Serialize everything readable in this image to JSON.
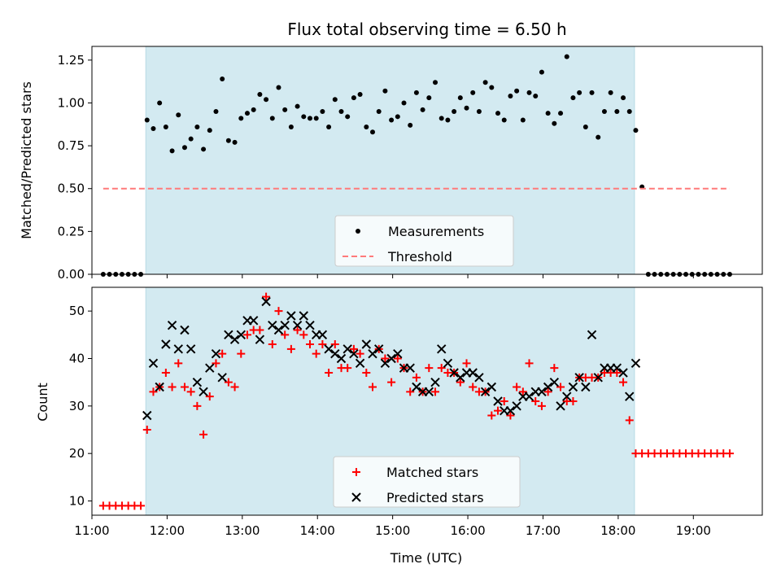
{
  "chart_data": [
    {
      "type": "scatter",
      "title": "Flux total observing time = 6.50 h",
      "xlabel": "",
      "ylabel": "Matched/Predicted stars",
      "xlim": [
        "11:00",
        "19:55"
      ],
      "ylim": [
        0,
        1.33
      ],
      "xticks": [
        "11:00",
        "12:00",
        "13:00",
        "14:00",
        "15:00",
        "16:00",
        "17:00",
        "18:00",
        "19:00"
      ],
      "yticks": [
        "0.00",
        "0.25",
        "0.50",
        "0.75",
        "1.00",
        "1.25"
      ],
      "shaded_interval": [
        "11:43",
        "18:13"
      ],
      "shade_color": "#d3eaf1",
      "legend_position": "bottom-center",
      "series": [
        {
          "name": "Measurements",
          "marker": "dot",
          "color": "#000000",
          "x": [
            "11:09",
            "11:14",
            "11:19",
            "11:24",
            "11:29",
            "11:34",
            "11:39",
            "11:44",
            "11:49",
            "11:54",
            "11:59",
            "12:04",
            "12:09",
            "12:14",
            "12:19",
            "12:24",
            "12:29",
            "12:34",
            "12:39",
            "12:44",
            "12:49",
            "12:54",
            "12:59",
            "13:04",
            "13:09",
            "13:14",
            "13:19",
            "13:24",
            "13:29",
            "13:34",
            "13:39",
            "13:44",
            "13:49",
            "13:54",
            "13:59",
            "14:04",
            "14:09",
            "14:14",
            "14:19",
            "14:24",
            "14:29",
            "14:34",
            "14:39",
            "14:44",
            "14:49",
            "14:54",
            "14:59",
            "15:04",
            "15:09",
            "15:14",
            "15:19",
            "15:24",
            "15:29",
            "15:34",
            "15:39",
            "15:44",
            "15:49",
            "15:54",
            "15:59",
            "16:04",
            "16:09",
            "16:14",
            "16:19",
            "16:24",
            "16:29",
            "16:34",
            "16:39",
            "16:44",
            "16:49",
            "16:54",
            "16:59",
            "17:04",
            "17:09",
            "17:14",
            "17:19",
            "17:24",
            "17:29",
            "17:34",
            "17:39",
            "17:44",
            "17:49",
            "17:54",
            "17:59",
            "18:04",
            "18:09",
            "18:14",
            "18:19",
            "18:24",
            "18:29",
            "18:34",
            "18:39",
            "18:44",
            "18:49",
            "18:54",
            "18:59",
            "19:04",
            "19:09",
            "19:14",
            "19:19",
            "19:24",
            "19:29"
          ],
          "y": [
            0,
            0,
            0,
            0,
            0,
            0,
            0,
            0.9,
            0.85,
            1.0,
            0.86,
            0.72,
            0.93,
            0.74,
            0.79,
            0.86,
            0.73,
            0.84,
            0.95,
            1.14,
            0.78,
            0.77,
            0.91,
            0.94,
            0.96,
            1.05,
            1.02,
            0.91,
            1.09,
            0.96,
            0.86,
            0.98,
            0.92,
            0.91,
            0.91,
            0.95,
            0.86,
            1.02,
            0.95,
            0.92,
            1.03,
            1.05,
            0.86,
            0.83,
            0.95,
            1.07,
            0.9,
            0.92,
            1.0,
            0.87,
            1.06,
            0.96,
            1.03,
            1.12,
            0.91,
            0.9,
            0.95,
            1.03,
            0.97,
            1.06,
            0.95,
            1.12,
            1.09,
            0.94,
            0.9,
            1.04,
            1.07,
            0.9,
            1.06,
            1.04,
            1.18,
            0.94,
            0.88,
            0.94,
            1.27,
            1.03,
            1.06,
            0.86,
            1.06,
            0.8,
            0.95,
            1.06,
            0.95,
            1.03,
            0.95,
            0.84,
            0.51,
            0,
            0,
            0,
            0,
            0,
            0,
            0,
            0,
            0,
            0,
            0,
            0,
            0,
            0
          ]
        },
        {
          "name": "Threshold",
          "marker": "dashed-line",
          "color": "#ff7a7a",
          "x": [
            "11:09",
            "19:29"
          ],
          "y": [
            0.5,
            0.5
          ]
        }
      ]
    },
    {
      "type": "scatter",
      "title": "",
      "xlabel": "Time (UTC)",
      "ylabel": "Count",
      "xlim": [
        "11:00",
        "19:55"
      ],
      "ylim": [
        7,
        55
      ],
      "xticks": [
        "11:00",
        "12:00",
        "13:00",
        "14:00",
        "15:00",
        "16:00",
        "17:00",
        "18:00",
        "19:00"
      ],
      "yticks": [
        "10",
        "20",
        "30",
        "40",
        "50"
      ],
      "shaded_interval": [
        "11:43",
        "18:13"
      ],
      "shade_color": "#d3eaf1",
      "legend_position": "bottom-center",
      "series": [
        {
          "name": "Matched stars",
          "marker": "plus",
          "color": "#ff0000",
          "x": [
            "11:09",
            "11:14",
            "11:19",
            "11:24",
            "11:29",
            "11:34",
            "11:39",
            "11:44",
            "11:49",
            "11:54",
            "11:59",
            "12:04",
            "12:09",
            "12:14",
            "12:19",
            "12:24",
            "12:29",
            "12:34",
            "12:39",
            "12:44",
            "12:49",
            "12:54",
            "12:59",
            "13:04",
            "13:09",
            "13:14",
            "13:19",
            "13:24",
            "13:29",
            "13:34",
            "13:39",
            "13:44",
            "13:49",
            "13:54",
            "13:59",
            "14:04",
            "14:09",
            "14:14",
            "14:19",
            "14:24",
            "14:29",
            "14:34",
            "14:39",
            "14:44",
            "14:49",
            "14:54",
            "14:59",
            "15:04",
            "15:09",
            "15:14",
            "15:19",
            "15:24",
            "15:29",
            "15:34",
            "15:39",
            "15:44",
            "15:49",
            "15:54",
            "15:59",
            "16:04",
            "16:09",
            "16:14",
            "16:19",
            "16:24",
            "16:29",
            "16:34",
            "16:39",
            "16:44",
            "16:49",
            "16:54",
            "16:59",
            "17:04",
            "17:09",
            "17:14",
            "17:19",
            "17:24",
            "17:29",
            "17:34",
            "17:39",
            "17:44",
            "17:49",
            "17:54",
            "17:59",
            "18:04",
            "18:09",
            "18:14",
            "18:19",
            "18:24",
            "18:29",
            "18:34",
            "18:39",
            "18:44",
            "18:49",
            "18:54",
            "18:59",
            "19:04",
            "19:09",
            "19:14",
            "19:19",
            "19:24",
            "19:29"
          ],
          "y": [
            9,
            9,
            9,
            9,
            9,
            9,
            9,
            25,
            33,
            34,
            37,
            34,
            39,
            34,
            33,
            30,
            24,
            32,
            39,
            41,
            35,
            34,
            41,
            45,
            46,
            46,
            53,
            43,
            50,
            45,
            42,
            46,
            45,
            43,
            41,
            43,
            37,
            43,
            38,
            38,
            42,
            41,
            37,
            34,
            42,
            40,
            35,
            40,
            38,
            33,
            36,
            33,
            38,
            33,
            38,
            37,
            37,
            35,
            39,
            34,
            33,
            33,
            28,
            29,
            31,
            28,
            34,
            33,
            39,
            31,
            30,
            33,
            38,
            34,
            31,
            31,
            36,
            36,
            36,
            36,
            37,
            37,
            37,
            35,
            27,
            20,
            20,
            20,
            20,
            20,
            20,
            20,
            20,
            20,
            20,
            20,
            20,
            20,
            20,
            20,
            20
          ]
        },
        {
          "name": "Predicted stars",
          "marker": "x",
          "color": "#000000",
          "x": [
            "11:44",
            "11:49",
            "11:54",
            "11:59",
            "12:04",
            "12:09",
            "12:14",
            "12:19",
            "12:24",
            "12:29",
            "12:34",
            "12:39",
            "12:44",
            "12:49",
            "12:54",
            "12:59",
            "13:04",
            "13:09",
            "13:14",
            "13:19",
            "13:24",
            "13:29",
            "13:34",
            "13:39",
            "13:44",
            "13:49",
            "13:54",
            "13:59",
            "14:04",
            "14:09",
            "14:14",
            "14:19",
            "14:24",
            "14:29",
            "14:34",
            "14:39",
            "14:44",
            "14:49",
            "14:54",
            "14:59",
            "15:04",
            "15:09",
            "15:14",
            "15:19",
            "15:24",
            "15:29",
            "15:34",
            "15:39",
            "15:44",
            "15:49",
            "15:54",
            "15:59",
            "16:04",
            "16:09",
            "16:14",
            "16:19",
            "16:24",
            "16:29",
            "16:34",
            "16:39",
            "16:44",
            "16:49",
            "16:54",
            "16:59",
            "17:04",
            "17:09",
            "17:14",
            "17:19",
            "17:24",
            "17:29",
            "17:34",
            "17:39",
            "17:44",
            "17:49",
            "17:54",
            "17:59",
            "18:04",
            "18:09",
            "18:14"
          ],
          "y": [
            28,
            39,
            34,
            43,
            47,
            42,
            46,
            42,
            35,
            33,
            38,
            41,
            36,
            45,
            44,
            45,
            48,
            48,
            44,
            52,
            47,
            46,
            47,
            49,
            47,
            49,
            47,
            45,
            45,
            42,
            41,
            40,
            42,
            41,
            39,
            43,
            41,
            42,
            39,
            40,
            41,
            38,
            38,
            34,
            33,
            33,
            35,
            42,
            39,
            37,
            36,
            37,
            37,
            36,
            33,
            34,
            31,
            29,
            29,
            30,
            32,
            32,
            33,
            33,
            34,
            35,
            30,
            32,
            34,
            36,
            34,
            45,
            36,
            38,
            38,
            38,
            37,
            32,
            39
          ]
        }
      ]
    }
  ]
}
